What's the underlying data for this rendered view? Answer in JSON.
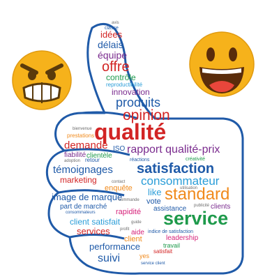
{
  "emojis": {
    "left": {
      "name": "angry-face",
      "face": "#F6B21B",
      "brow": "#5A3A0B",
      "teeth": "#ffffff"
    },
    "right": {
      "name": "laughing-face",
      "face": "#F6B21B",
      "mouth": "#5A2C0B",
      "tongue": "#E8463B"
    }
  },
  "palette": {
    "outline": "#1F5AA8",
    "red": "#D22424",
    "blue": "#1F5AA8",
    "green": "#1E9A4B",
    "orange": "#F08A1C",
    "purple": "#7A2B8E",
    "pink": "#D6237A",
    "gray": "#6D6D6D",
    "cyan": "#2A9DD8",
    "magenta": "#C0208A"
  },
  "words": {
    "avis": "avis",
    "classe": "classe",
    "idees": "idées",
    "delais": "délais",
    "equipe": "équipe",
    "offre": "offre",
    "controle": "contrôle",
    "reproductibilite": "reproductibilité",
    "innovation": "innovation",
    "produits": "produits",
    "opinion": "opinion",
    "qualite": "qualité",
    "bienvenue": "bienvenue",
    "prestations": "prestations",
    "demande": "demande",
    "fiabilite": "fiabilité",
    "adoption": "adoption",
    "retour": "retour",
    "clientele": "clientèle",
    "iso": "ISO",
    "rapport_qualite_prix": "rapport qualité-prix",
    "reactions": "réactions",
    "creativite": "créativité",
    "temoignages": "témoignages",
    "satisfaction": "satisfaction",
    "marketing": "marketing",
    "consommateur": "consommateur",
    "contact": "contact",
    "enquete": "enquête",
    "utilisation": "utilisation",
    "like": "like",
    "standard": "standard",
    "image_de_marque": "image de marque",
    "vote": "vote",
    "commande": "commande",
    "part_de_marche": "part de marché",
    "consommateurs": "consommateurs",
    "rapidite": "rapidité",
    "assistance": "assistance",
    "publicite": "publicité",
    "clients": "clients",
    "client_satisfait": "client satisfait",
    "guide": "guide",
    "service": "service",
    "services": "services",
    "profit": "profit",
    "indice_de_satisfaction": "indice de satisfaction",
    "aide": "aide",
    "client": "client",
    "leadership": "leadership",
    "performance": "performance",
    "travail": "travail",
    "suivi": "suivi",
    "satisfait": "satisfait",
    "yes": "yes",
    "service_client": "service client"
  }
}
